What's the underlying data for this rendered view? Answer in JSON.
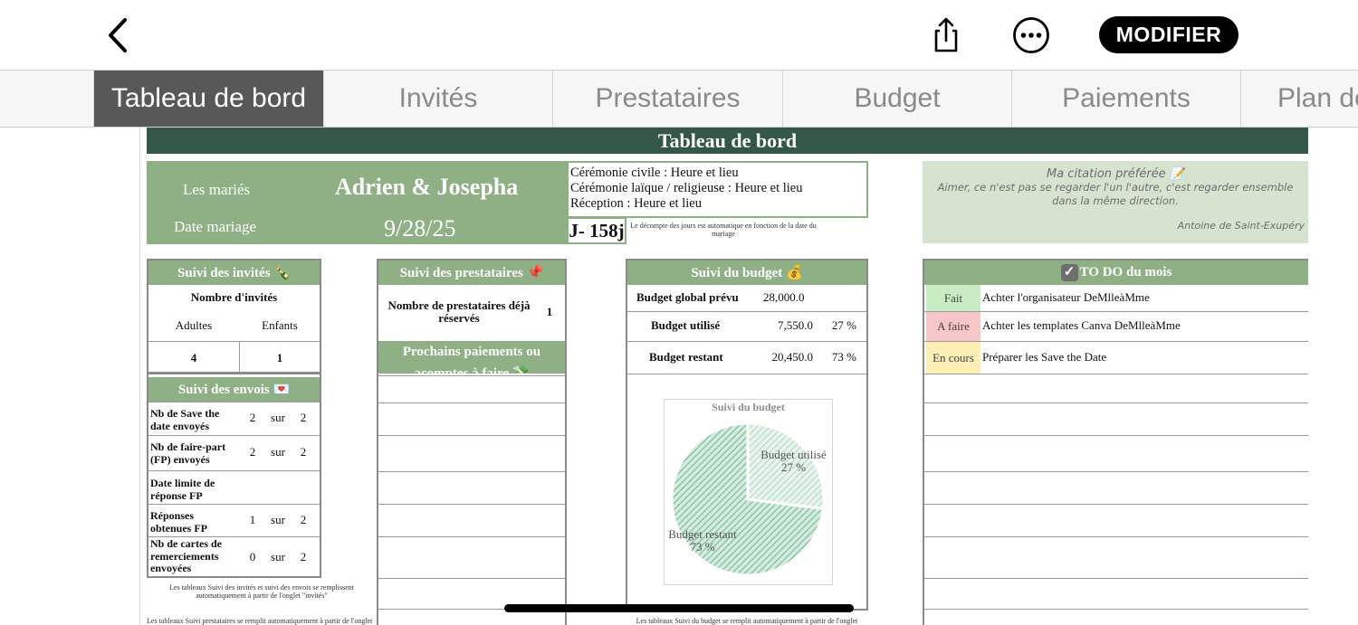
{
  "toolbar": {
    "back_icon": "chevron-left-icon",
    "share_icon": "share-icon",
    "more_icon": "ellipsis-circle-icon",
    "edit_label": "MODIFIER"
  },
  "tabs": [
    {
      "label": "Tableau de bord",
      "active": true
    },
    {
      "label": "Invités"
    },
    {
      "label": "Prestataires"
    },
    {
      "label": "Budget"
    },
    {
      "label": "Paiements"
    },
    {
      "label": "Plan de"
    }
  ],
  "dashboard": {
    "title": "Tableau de bord",
    "couple_label": "Les mariés",
    "couple_names": "Adrien & Josepha",
    "date_label": "Date mariage",
    "date_value": "9/28/25",
    "events": [
      "Cérémonie civile : Heure et lieu",
      "Cérémonie laïque / religieuse : Heure et lieu",
      "Réception : Heure et lieu"
    ],
    "countdown": "J- 158j",
    "countdown_note": "Le décompte des jours est automatique en fonction de la date du mariage",
    "quote": {
      "heading": "Ma citation préférée 📝",
      "text": "Aimer, ce n'est pas se regarder l'un l'autre, c'est regarder ensemble dans la même direction.",
      "author": "Antoine de Saint-Exupéry"
    }
  },
  "guests": {
    "title": "Suivi des invités 🍾",
    "count_label": "Nombre d'invités",
    "adults_label": "Adultes",
    "children_label": "Enfants",
    "adults": "4",
    "children": "1"
  },
  "sendings": {
    "title": "Suivi des envois 💌",
    "rows": [
      {
        "label": "Nb de Save the date envoyés",
        "value": "2",
        "sep": "sur",
        "total": "2"
      },
      {
        "label": "Nb de faire-part (FP) envoyés",
        "value": "2",
        "sep": "sur",
        "total": "2"
      },
      {
        "label": "Date limite de réponse FP",
        "value": "",
        "sep": "",
        "total": ""
      },
      {
        "label": "Réponses obtenues FP",
        "value": "1",
        "sep": "sur",
        "total": "2"
      },
      {
        "label": "Nb de cartes de remerciements envoyées",
        "value": "0",
        "sep": "sur",
        "total": "2"
      }
    ],
    "note": "Les tableaux Suivi des invités et suivi des envois se remplissent automatiquement à partir de l'onglet \"invités\"",
    "note2": "Les tableaux Suivi prestataires se remplit automatiquement à partir de l'onglet"
  },
  "vendors": {
    "title": "Suivi des prestataires 📌",
    "booked_label": "Nombre de prestataires déjà réservés",
    "booked_value": "1",
    "payments_title": "Prochains paiements ou acomptes à faire 💸"
  },
  "budget": {
    "title": "Suivi du budget 💰",
    "rows": [
      {
        "label": "Budget global prévu",
        "value": "28,000.0",
        "pct": ""
      },
      {
        "label": "Budget utilisé",
        "value": "7,550.0",
        "pct": "27 %"
      },
      {
        "label": "Budget restant",
        "value": "20,450.0",
        "pct": "73 %"
      }
    ],
    "note": "Les tableaux Suivi du budget se remplit automatiquement à partir de l'onglet"
  },
  "chart_data": {
    "type": "pie",
    "title": "Suivi du budget",
    "slices": [
      {
        "label": "Budget utilisé",
        "value": 27,
        "pct_label": "27 %",
        "color": "#b9dcc9"
      },
      {
        "label": "Budget restant",
        "value": 73,
        "pct_label": "73 %",
        "color": "#7fbfa2"
      }
    ]
  },
  "todo": {
    "title": "TO DO du mois",
    "items": [
      {
        "status": "Fait",
        "status_color": "#c9ecc4",
        "text": "Achter l'organisateur DeMlleàMme"
      },
      {
        "status": "A faire",
        "status_color": "#f6c6c9",
        "text": "Achter les templates Canva DeMlleàMme"
      },
      {
        "status": "En cours",
        "status_color": "#fbefb6",
        "text": "Préparer les Save the Date"
      }
    ]
  }
}
